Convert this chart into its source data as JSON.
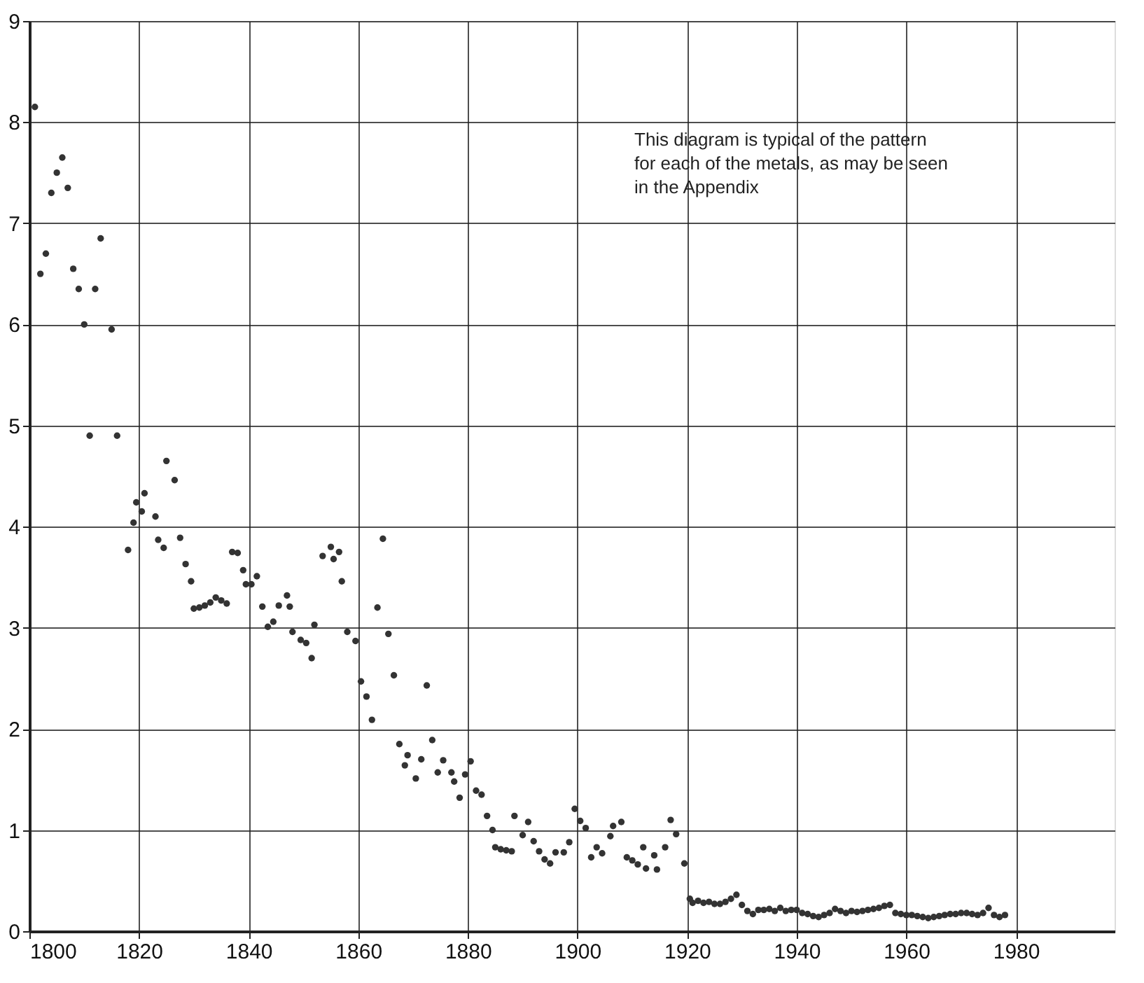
{
  "chart_data": {
    "type": "scatter",
    "marker": "circle",
    "grid": true,
    "xlim": [
      1800,
      1998
    ],
    "xticks": [
      1800,
      1820,
      1840,
      1860,
      1880,
      1900,
      1920,
      1940,
      1960,
      1980
    ],
    "ylim": [
      0,
      9
    ],
    "yticks": [
      0,
      1,
      2,
      3,
      4,
      5,
      6,
      7,
      8,
      9
    ],
    "annotations": [
      "This diagram is typical of the pattern for each of the metals, as may be seen in the Appendix"
    ],
    "series": [
      {
        "color": "#333333",
        "x": [
          1801,
          1802,
          1803,
          1804,
          1805,
          1806,
          1807,
          1808,
          1809,
          1810,
          1811,
          1812,
          1813,
          1815,
          1816,
          1818,
          1819,
          1819.5,
          1820.5,
          1821,
          1823,
          1823.5,
          1824.5,
          1825,
          1826.5,
          1827.5,
          1828.5,
          1829.5,
          1830,
          1831,
          1832,
          1833,
          1834,
          1835,
          1836,
          1837,
          1838,
          1839,
          1839.5,
          1840.5,
          1841.5,
          1842.5,
          1843.5,
          1844.5,
          1845.5,
          1847,
          1847.5,
          1848,
          1849.5,
          1850.5,
          1851.5,
          1852,
          1853.5,
          1855,
          1855.5,
          1856.5,
          1857,
          1858,
          1859.5,
          1860.5,
          1861.5,
          1862.5,
          1863.5,
          1864.5,
          1865.5,
          1866.5,
          1867.5,
          1868.5,
          1869,
          1870.5,
          1871.5,
          1872.5,
          1873.5,
          1874.5,
          1875.5,
          1877,
          1877.5,
          1878.5,
          1879.5,
          1880.5,
          1881.5,
          1882.5,
          1883.5,
          1884.5,
          1885,
          1886,
          1887,
          1888,
          1888.5,
          1890,
          1891,
          1892,
          1893,
          1894,
          1895,
          1896,
          1897.5,
          1898.5,
          1899.5,
          1900.5,
          1901.5,
          1902.5,
          1903.5,
          1904.5,
          1906,
          1906.5,
          1908,
          1909,
          1910,
          1911,
          1912,
          1912.5,
          1914,
          1914.5,
          1916,
          1917,
          1918,
          1919.5,
          1920.5,
          1921,
          1922,
          1923,
          1924,
          1925,
          1926,
          1927,
          1928,
          1929,
          1930,
          1931,
          1932,
          1933,
          1934,
          1935,
          1936,
          1937,
          1938,
          1939,
          1940,
          1941,
          1942,
          1943,
          1944,
          1945,
          1946,
          1947,
          1948,
          1949,
          1950,
          1951,
          1952,
          1953,
          1954,
          1955,
          1956,
          1957,
          1958,
          1959,
          1960,
          1961,
          1962,
          1963,
          1964,
          1965,
          1966,
          1967,
          1968,
          1969,
          1970,
          1971,
          1972,
          1973,
          1974,
          1975,
          1976,
          1977,
          1978
        ],
        "values": [
          8.15,
          6.5,
          6.7,
          7.3,
          7.5,
          7.65,
          7.35,
          6.55,
          6.35,
          6.0,
          4.9,
          6.35,
          6.85,
          5.95,
          4.9,
          3.77,
          4.04,
          4.24,
          4.15,
          4.33,
          4.1,
          3.87,
          3.79,
          4.65,
          4.46,
          3.89,
          3.63,
          3.46,
          3.19,
          3.2,
          3.22,
          3.25,
          3.3,
          3.27,
          3.24,
          3.75,
          3.74,
          3.57,
          3.43,
          3.43,
          3.51,
          3.21,
          3.01,
          3.06,
          3.22,
          3.32,
          3.21,
          2.96,
          2.88,
          2.85,
          2.7,
          3.03,
          3.71,
          3.8,
          3.68,
          3.75,
          3.46,
          2.96,
          2.87,
          2.47,
          2.32,
          2.09,
          3.2,
          3.88,
          2.94,
          2.53,
          1.85,
          1.64,
          1.74,
          1.51,
          1.7,
          2.43,
          1.89,
          1.57,
          1.69,
          1.57,
          1.48,
          1.32,
          1.55,
          1.68,
          1.39,
          1.35,
          1.14,
          1.0,
          0.83,
          0.81,
          0.8,
          0.79,
          1.14,
          0.95,
          1.08,
          0.89,
          0.79,
          0.71,
          0.67,
          0.78,
          0.78,
          0.88,
          1.21,
          1.09,
          1.02,
          0.73,
          0.83,
          0.77,
          0.94,
          1.04,
          1.08,
          0.73,
          0.7,
          0.66,
          0.83,
          0.62,
          0.75,
          0.61,
          0.83,
          1.1,
          0.96,
          0.67,
          0.32,
          0.28,
          0.3,
          0.28,
          0.29,
          0.27,
          0.27,
          0.29,
          0.32,
          0.36,
          0.26,
          0.2,
          0.17,
          0.21,
          0.21,
          0.22,
          0.2,
          0.23,
          0.2,
          0.21,
          0.21,
          0.18,
          0.17,
          0.15,
          0.14,
          0.16,
          0.18,
          0.22,
          0.2,
          0.18,
          0.2,
          0.19,
          0.2,
          0.21,
          0.22,
          0.23,
          0.25,
          0.26,
          0.18,
          0.17,
          0.16,
          0.16,
          0.15,
          0.14,
          0.13,
          0.14,
          0.15,
          0.16,
          0.17,
          0.17,
          0.18,
          0.18,
          0.17,
          0.16,
          0.18,
          0.23,
          0.16,
          0.14,
          0.16
        ]
      }
    ]
  }
}
